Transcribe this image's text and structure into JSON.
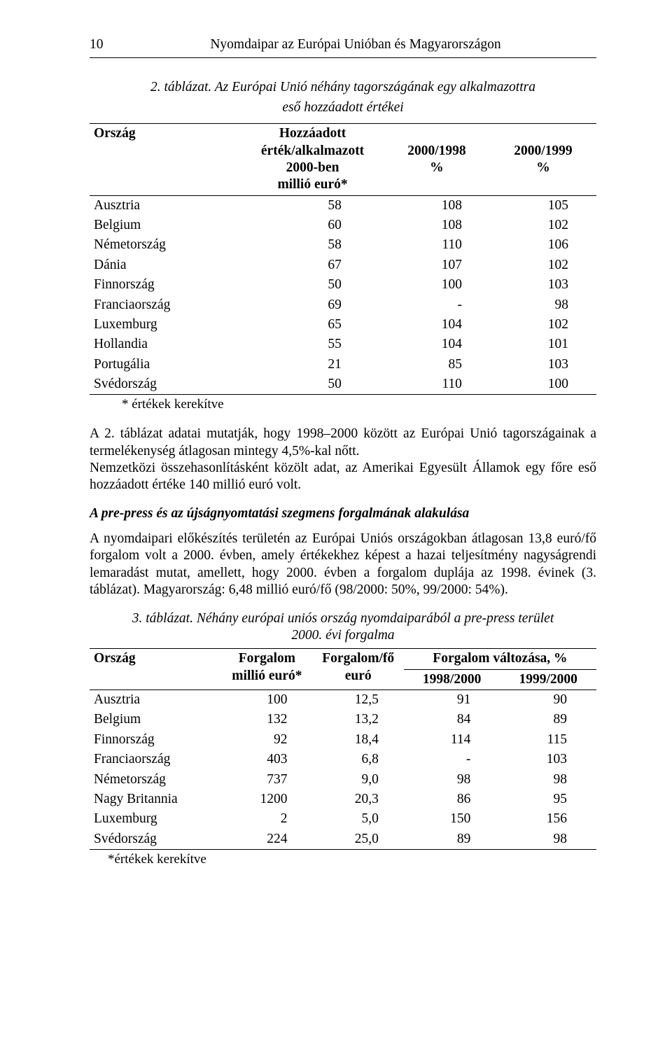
{
  "header": {
    "page_number": "10",
    "running_title": "Nyomdaipar az Európai Unióban és Magyarországon"
  },
  "table2": {
    "caption_line1": "2. táblázat.",
    "caption_line2_a": "Az Európai Unió néhány tagországának egy alkalmazottra",
    "caption_line2_b": "eső hozzáadott értékei",
    "columns": {
      "country": "Ország",
      "value_header_a": "Hozzáadott",
      "value_header_b": "érték/alkalmazott",
      "value_header_c": "2000-ben",
      "value_header_d": "millió euró*",
      "col_1998": "2000/1998",
      "col_1999": "2000/1999",
      "pct": "%"
    },
    "rows": [
      {
        "country": "Ausztria",
        "v": "58",
        "a": "108",
        "b": "105"
      },
      {
        "country": "Belgium",
        "v": "60",
        "a": "108",
        "b": "102"
      },
      {
        "country": "Németország",
        "v": "58",
        "a": "110",
        "b": "106"
      },
      {
        "country": "Dánia",
        "v": "67",
        "a": "107",
        "b": "102"
      },
      {
        "country": "Finnország",
        "v": "50",
        "a": "100",
        "b": "103"
      },
      {
        "country": "Franciaország",
        "v": "69",
        "a": "-",
        "b": "98"
      },
      {
        "country": "Luxemburg",
        "v": "65",
        "a": "104",
        "b": "102"
      },
      {
        "country": "Hollandia",
        "v": "55",
        "a": "104",
        "b": "101"
      },
      {
        "country": "Portugália",
        "v": "21",
        "a": "85",
        "b": "103"
      },
      {
        "country": "Svédország",
        "v": "50",
        "a": "110",
        "b": "100"
      }
    ],
    "footnote": "* értékek kerekítve"
  },
  "para1": "A 2. táblázat adatai mutatják, hogy 1998–2000 között az Európai Unió tagországainak a termelékenység átlagosan mintegy 4,5%-kal nőtt.",
  "para2": "Nemzetközi összehasonlításként közölt adat, az Amerikai Egyesült Államok egy főre eső hozzáadott értéke 140 millió euró volt.",
  "subhead": "A pre-press és az újságnyomtatási szegmens forgalmának alakulása",
  "para3": "A nyomdaipari előkészítés területén az Európai Uniós országokban átlagosan 13,8 euró/fő forgalom volt a 2000. évben, amely értékekhez képest a hazai teljesítmény nagyságrendi lemaradást mutat, amellett, hogy 2000. évben a forgalom duplája az 1998. évinek (3. táblázat). Magyarország: 6,48 millió euró/fő (98/2000: 50%, 99/2000: 54%).",
  "table3": {
    "caption_a": "3. táblázat. Néhány európai uniós ország nyomdaiparából a pre-press terület",
    "caption_b": "2000. évi forgalma",
    "columns": {
      "country": "Ország",
      "forgalom_a": "Forgalom",
      "forgalom_b": "millió euró*",
      "forgalom_fo_a": "Forgalom/fő",
      "forgalom_fo_b": "euró",
      "valt": "Forgalom változása, %",
      "y1": "1998/2000",
      "y2": "1999/2000"
    },
    "rows": [
      {
        "country": "Ausztria",
        "f": "100",
        "ffo": "12,5",
        "y1": "91",
        "y2": "90"
      },
      {
        "country": "Belgium",
        "f": "132",
        "ffo": "13,2",
        "y1": "84",
        "y2": "89"
      },
      {
        "country": "Finnország",
        "f": "92",
        "ffo": "18,4",
        "y1": "114",
        "y2": "115"
      },
      {
        "country": "Franciaország",
        "f": "403",
        "ffo": "6,8",
        "y1": "-",
        "y2": "103"
      },
      {
        "country": "Németország",
        "f": "737",
        "ffo": "9,0",
        "y1": "98",
        "y2": "98"
      },
      {
        "country": "Nagy Britannia",
        "f": "1200",
        "ffo": "20,3",
        "y1": "86",
        "y2": "95"
      },
      {
        "country": "Luxemburg",
        "f": "2",
        "ffo": "5,0",
        "y1": "150",
        "y2": "156"
      },
      {
        "country": "Svédország",
        "f": "224",
        "ffo": "25,0",
        "y1": "89",
        "y2": "98"
      }
    ],
    "footnote": "*értékek kerekítve"
  }
}
